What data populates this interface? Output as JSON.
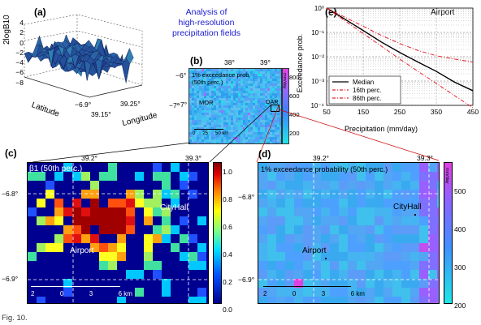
{
  "title_lines": [
    "Analysis of",
    "high-resolution",
    "precipitation fields"
  ],
  "caption": "Fig. 10.",
  "panel_a": {
    "label": "(a)",
    "zlabel": "2logB10",
    "zticks": [
      "4",
      "2",
      "0",
      "−2",
      "−4",
      "−6",
      "−8"
    ],
    "xlabel": "Latitude",
    "ylabel": "Longitude",
    "lat_tick": "−6.9°",
    "lon_ticks": [
      "39.25°",
      "39.15°"
    ],
    "lon_suffix": "−7°"
  },
  "panel_b": {
    "label": "(b)",
    "top_ticks": [
      "38°",
      "39°"
    ],
    "left_ticks": [
      "−6°",
      "−7°"
    ],
    "inner_label_lines": [
      "1% exceedance prob.",
      "(50th perc.)"
    ],
    "places": [
      "MOR",
      "DAR"
    ],
    "scale_ticks": [
      "0",
      "25",
      "50 km"
    ],
    "cbar_ticks": [
      "800",
      "600",
      "400",
      "200"
    ],
    "cbar_unit": "mm/day"
  },
  "panel_c": {
    "label": "(c)",
    "top_ticks": [
      "39.2°",
      "39.3°"
    ],
    "left_ticks": [
      "−6.8°",
      "−6.9°"
    ],
    "inner_label": "β1 (50th perc.)",
    "places": [
      "CityHall",
      "Airport"
    ],
    "scale_ticks": [
      "2",
      "0",
      "3",
      "6 km"
    ],
    "cbar_ticks": [
      "1.0",
      "0.8",
      "0.6",
      "0.4",
      "0.2",
      "0.0"
    ],
    "right_ticks": [
      "−6.8°",
      "−6.9°"
    ]
  },
  "panel_d": {
    "label": "(d)",
    "top_ticks": [
      "39.2°",
      "39.3°"
    ],
    "inner_label": "1% exceedance probability (50th perc.)",
    "places": [
      "CityHall",
      "Airport"
    ],
    "scale_ticks": [
      "2",
      "0",
      "3",
      "6 km"
    ],
    "cbar_ticks": [
      "500",
      "400",
      "300",
      "200"
    ],
    "cbar_unit": "mm/day"
  },
  "colors": {
    "cyan": "#22e0e8",
    "blue": "#2a50ff",
    "purple": "#a050ff",
    "red": "#e8202a",
    "orange": "#ff8a10",
    "yellow": "#f0f020",
    "green": "#40d060",
    "navy": "#101090"
  },
  "chart_data": {
    "type": "line",
    "title": "Airport",
    "panel_label": "(e)",
    "xlabel": "Precipitation (mm/day)",
    "ylabel": "Exceedance prob.",
    "x_ticks": [
      "50",
      "150",
      "250",
      "350",
      "450"
    ],
    "xlim": [
      50,
      450
    ],
    "yscale": "log",
    "ylim": [
      0.0001,
      1
    ],
    "y_ticks": [
      "10⁰",
      "10⁻¹",
      "10⁻²",
      "10⁻³",
      "10⁻⁴"
    ],
    "grid": true,
    "legend_position": "bottom-left",
    "series": [
      {
        "name": "Median",
        "color": "#000000",
        "dash": "solid",
        "x": [
          50,
          100,
          150,
          200,
          250,
          300,
          350,
          400,
          450
        ],
        "y": [
          1.0,
          0.35,
          0.12,
          0.04,
          0.015,
          0.006,
          0.0025,
          0.0009,
          0.0004
        ]
      },
      {
        "name": "16th perc.",
        "color": "#e8202a",
        "dash": "dashdot",
        "x": [
          50,
          100,
          150,
          200,
          250,
          300,
          350,
          400,
          450
        ],
        "y": [
          1.0,
          0.3,
          0.09,
          0.027,
          0.008,
          0.0025,
          0.0008,
          0.00025,
          8e-05
        ]
      },
      {
        "name": "86th perc.",
        "color": "#e8202a",
        "dash": "dashdot",
        "x": [
          50,
          100,
          150,
          200,
          250,
          300,
          350,
          400,
          450
        ],
        "y": [
          1.0,
          0.42,
          0.18,
          0.075,
          0.035,
          0.018,
          0.011,
          0.008,
          0.006
        ]
      }
    ]
  }
}
